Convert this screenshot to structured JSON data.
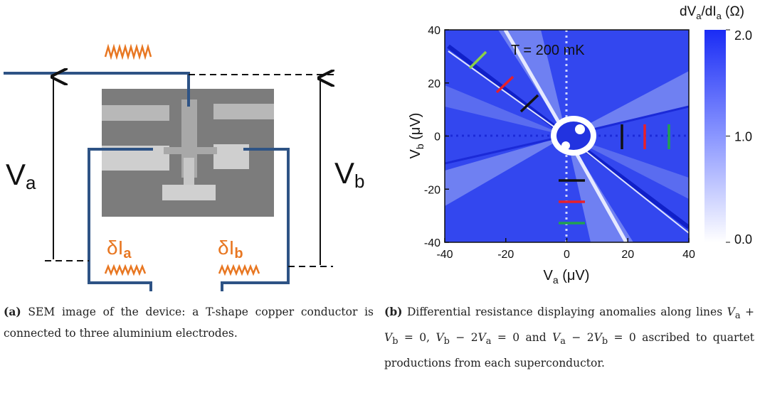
{
  "figure_a": {
    "label_va": {
      "main": "V",
      "sub": "a"
    },
    "label_vb": {
      "main": "V",
      "sub": "b"
    },
    "label_dia": {
      "main": "δI",
      "sub": "a"
    },
    "label_dib": {
      "main": "δI",
      "sub": "b"
    }
  },
  "figure_b": {
    "annotation": "T = 200 mK",
    "x_label": {
      "main": "V",
      "sub": "a",
      "unit": " (μV)"
    },
    "y_label": {
      "main": "V",
      "sub": "b",
      "unit": " (μV)"
    },
    "colorbar_title": {
      "p1": "dV",
      "s1": "a",
      "p2": "/dI",
      "s2": "a",
      "p3": " (Ω)"
    },
    "xlim": [
      -40,
      40
    ],
    "xticks": [
      -40,
      -20,
      0,
      20,
      40
    ],
    "ylim": [
      -40,
      40
    ],
    "yticks": [
      -40,
      -20,
      0,
      20,
      40
    ],
    "clim": [
      0,
      2
    ],
    "cticks": [
      {
        "value": 2,
        "label": "2.0"
      },
      {
        "value": 1,
        "label": "1.0"
      },
      {
        "value": 0,
        "label": "0.0"
      }
    ]
  },
  "caption_a": {
    "label": "(a)",
    "runs": [
      {
        "t": " SEM image of the device: a T-shape copper conductor is connected to three aluminium electrodes."
      }
    ]
  },
  "caption_b": {
    "label": "(b)",
    "runs": [
      {
        "t": " Differential resistance displaying anomalies along lines "
      },
      {
        "i": "V"
      },
      {
        "sub": "a"
      },
      {
        "t": " + "
      },
      {
        "i": "V"
      },
      {
        "sub": "b"
      },
      {
        "t": " = 0, "
      },
      {
        "i": "V"
      },
      {
        "sub": "b"
      },
      {
        "t": " − 2"
      },
      {
        "i": "V"
      },
      {
        "sub": "a"
      },
      {
        "t": " = 0 and "
      },
      {
        "i": "V"
      },
      {
        "sub": "a"
      },
      {
        "t": " − 2"
      },
      {
        "i": "V"
      },
      {
        "sub": "b"
      },
      {
        "t": " = 0 ascribed to quartet productions from each superconductor."
      }
    ]
  }
}
